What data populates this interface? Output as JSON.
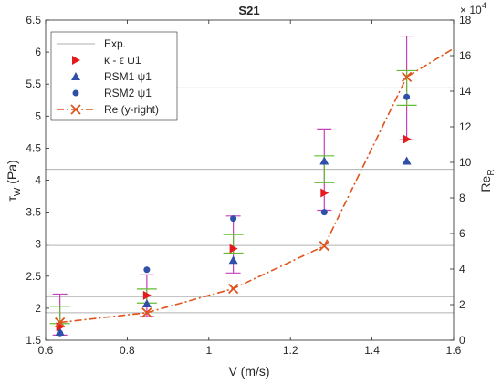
{
  "chart_data": {
    "type": "scatter",
    "title": "S21",
    "xlabel_main": "V",
    "xlabel_unit": "(m/s)",
    "ylabel_tau": "τ",
    "ylabel_sub": "W",
    "ylabel_unit": "(Pa)",
    "y2label": "Re",
    "y2label_sub": "R",
    "y2_exponent_base": "× 10",
    "y2_exponent": "4",
    "xlim": [
      0.6,
      1.6
    ],
    "ylim": [
      1.5,
      6.5
    ],
    "y2lim": [
      0,
      180000
    ],
    "xticks": [
      "0.6",
      "0.8",
      "1",
      "1.2",
      "1.4",
      "1.6"
    ],
    "yticks": [
      "1.5",
      "2",
      "2.5",
      "3",
      "3.5",
      "4",
      "4.5",
      "5",
      "5.5",
      "6",
      "6.5"
    ],
    "y2ticks": [
      "0",
      "2",
      "4",
      "6",
      "8",
      "10",
      "12",
      "14",
      "16",
      "18"
    ],
    "x": [
      0.635,
      0.848,
      1.06,
      1.283,
      1.485
    ],
    "series": [
      {
        "name": "Exp.",
        "style": "hline",
        "color": "#b0b0b0",
        "values": [
          1.93,
          2.18,
          2.98,
          4.17,
          5.44
        ]
      },
      {
        "name": "κ - ϵ ψ1",
        "marker": "triangle-right",
        "color": "#e41a1c",
        "values": [
          1.71,
          2.2,
          2.93,
          3.8,
          4.64
        ]
      },
      {
        "name": "RSM1 ψ1",
        "marker": "triangle-up",
        "color": "#2f4fa8",
        "values": [
          1.63,
          2.07,
          2.75,
          4.3,
          4.3
        ]
      },
      {
        "name": "RSM2 ψ1",
        "marker": "circle",
        "color": "#2f4fa8",
        "values": [
          1.61,
          2.6,
          3.4,
          3.5,
          5.3
        ]
      },
      {
        "name": "Re (y-right)",
        "marker": "x",
        "color": "#e0531c",
        "line": "dash-dot",
        "axis": "right",
        "values": [
          10000,
          15500,
          29000,
          53000,
          148000
        ]
      }
    ],
    "extra_points": [
      {
        "x": 1.6,
        "y2": 164000
      }
    ],
    "errorbars": {
      "magenta": {
        "color": "#c640b8",
        "low": [
          1.58,
          1.87,
          2.55,
          3.53,
          4.63
        ],
        "high": [
          2.22,
          2.52,
          3.44,
          4.8,
          6.25
        ]
      },
      "green": {
        "color": "#66bb33",
        "low": [
          1.76,
          2.08,
          2.86,
          3.96,
          5.17
        ],
        "high": [
          2.03,
          2.3,
          3.15,
          4.38,
          5.71
        ]
      }
    },
    "legend_position": "top-left",
    "grid": false
  }
}
